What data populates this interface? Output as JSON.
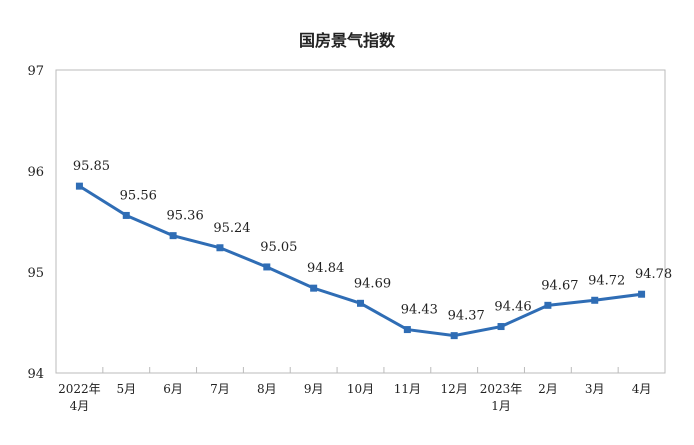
{
  "chart_data": {
    "type": "line",
    "title": "国房景气指数",
    "xlabel": "",
    "ylabel": "",
    "categories": [
      "2022年\n4月",
      "5月",
      "6月",
      "7月",
      "8月",
      "9月",
      "10月",
      "11月",
      "12月",
      "2023年\n1月",
      "2月",
      "3月",
      "4月"
    ],
    "series": [
      {
        "name": "国房景气指数",
        "values": [
          95.85,
          95.56,
          95.36,
          95.24,
          95.05,
          94.84,
          94.69,
          94.43,
          94.37,
          94.46,
          94.67,
          94.72,
          94.78
        ]
      }
    ],
    "value_labels": [
      "95.85",
      "95.56",
      "95.36",
      "95.24",
      "95.05",
      "94.84",
      "94.69",
      "94.43",
      "94.37",
      "94.46",
      "94.67",
      "94.72",
      "94.78"
    ],
    "ylim": [
      94,
      97
    ],
    "yticks": [
      "94",
      "95",
      "96",
      "97"
    ],
    "grid": false,
    "legend": "none",
    "line_color": "#2f6db5"
  }
}
